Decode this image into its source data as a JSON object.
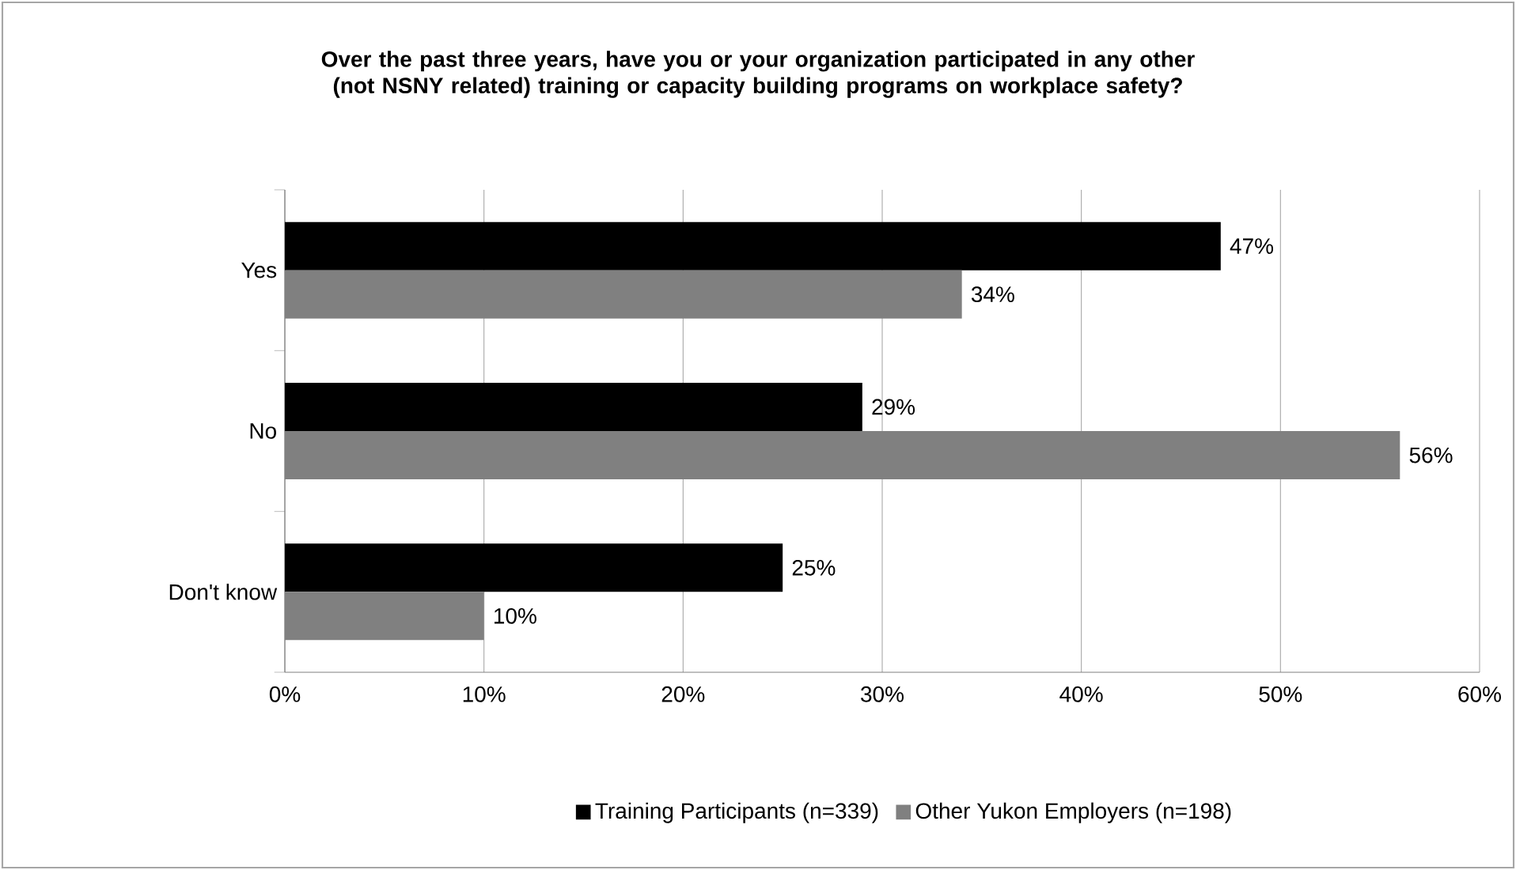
{
  "chart_data": {
    "type": "bar",
    "orientation": "horizontal",
    "title": "Over the past three years, have you or your organization participated in any other (not NSNY related) training or capacity building programs on workplace safety?",
    "categories": [
      "Yes",
      "No",
      "Don't know"
    ],
    "series": [
      {
        "name": "Training Participants (n=339)",
        "color": "#000000",
        "values": [
          47,
          29,
          25
        ],
        "value_labels": [
          "47%",
          "29%",
          "25%"
        ]
      },
      {
        "name": "Other Yukon Employers (n=198)",
        "color": "#808080",
        "values": [
          34,
          56,
          10
        ],
        "value_labels": [
          "34%",
          "56%",
          "10%"
        ]
      }
    ],
    "xlim": [
      0,
      60
    ],
    "xticks": [
      {
        "value": 0,
        "label": "0%"
      },
      {
        "value": 10,
        "label": "10%"
      },
      {
        "value": 20,
        "label": "20%"
      },
      {
        "value": 30,
        "label": "30%"
      },
      {
        "value": 40,
        "label": "40%"
      },
      {
        "value": 50,
        "label": "50%"
      },
      {
        "value": 60,
        "label": "60%"
      }
    ],
    "grid": "x",
    "legend": "bottom"
  }
}
